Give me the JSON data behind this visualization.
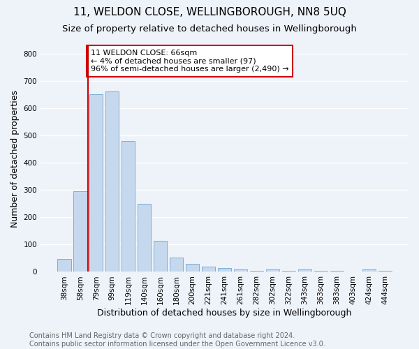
{
  "title": "11, WELDON CLOSE, WELLINGBOROUGH, NN8 5UQ",
  "subtitle": "Size of property relative to detached houses in Wellingborough",
  "xlabel": "Distribution of detached houses by size in Wellingborough",
  "ylabel": "Number of detached properties",
  "categories": [
    "38sqm",
    "58sqm",
    "79sqm",
    "99sqm",
    "119sqm",
    "140sqm",
    "160sqm",
    "180sqm",
    "200sqm",
    "221sqm",
    "241sqm",
    "261sqm",
    "282sqm",
    "302sqm",
    "322sqm",
    "343sqm",
    "363sqm",
    "383sqm",
    "403sqm",
    "424sqm",
    "444sqm"
  ],
  "values": [
    47,
    295,
    650,
    660,
    480,
    250,
    115,
    52,
    30,
    20,
    15,
    10,
    5,
    8,
    5,
    10,
    3,
    3,
    0,
    10,
    3
  ],
  "bar_color": "#c5d8ed",
  "bar_edge_color": "#7aafd4",
  "background_color": "#eef2f9",
  "grid_color": "#ffffff",
  "vline_x": 1.5,
  "vline_color": "#cc0000",
  "annotation_text": "11 WELDON CLOSE: 66sqm\n← 4% of detached houses are smaller (97)\n96% of semi-detached houses are larger (2,490) →",
  "annotation_box_color": "#ffffff",
  "annotation_box_edge_color": "#cc0000",
  "footer_text": "Contains HM Land Registry data © Crown copyright and database right 2024.\nContains public sector information licensed under the Open Government Licence v3.0.",
  "ylim": [
    0,
    830
  ],
  "title_fontsize": 11,
  "subtitle_fontsize": 9.5,
  "xlabel_fontsize": 9,
  "ylabel_fontsize": 9,
  "tick_fontsize": 7.5,
  "footer_fontsize": 7,
  "annotation_fontsize": 8
}
